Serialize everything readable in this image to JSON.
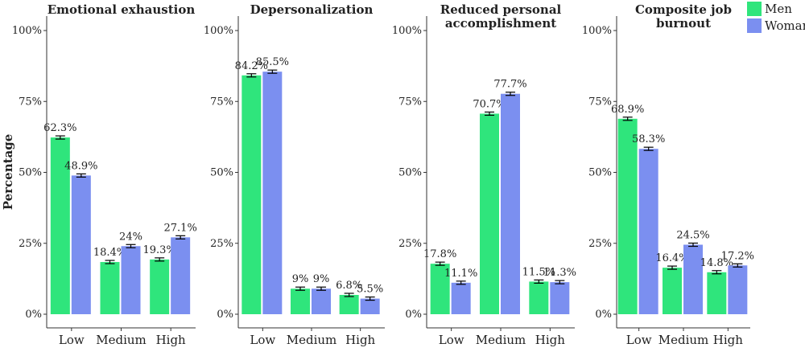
{
  "chart_data": {
    "type": "bar",
    "ylabel": "Percentage",
    "categories": [
      "Low",
      "Medium",
      "High"
    ],
    "ylim": [
      0,
      100
    ],
    "yticks": [
      "0%",
      "25%",
      "50%",
      "75%",
      "100%"
    ],
    "legend": {
      "placement": "top-right",
      "entries": [
        {
          "name": "Men",
          "color": "#2fe57c"
        },
        {
          "name": "Woman",
          "color": "#7b8ff0"
        }
      ]
    },
    "panels": [
      {
        "title": [
          "Emotional exhaustion"
        ],
        "series": [
          {
            "name": "Men",
            "values": [
              62.3,
              18.4,
              19.3
            ],
            "labels": [
              "62.3%",
              "18.4%",
              "19.3%"
            ]
          },
          {
            "name": "Woman",
            "values": [
              48.9,
              24,
              27.1
            ],
            "labels": [
              "48.9%",
              "24%",
              "27.1%"
            ]
          }
        ]
      },
      {
        "title": [
          "Depersonalization"
        ],
        "series": [
          {
            "name": "Men",
            "values": [
              84.2,
              9,
              6.8
            ],
            "labels": [
              "84.2%",
              "9%",
              "6.8%"
            ]
          },
          {
            "name": "Woman",
            "values": [
              85.5,
              9,
              5.5
            ],
            "labels": [
              "85.5%",
              "9%",
              "5.5%"
            ]
          }
        ]
      },
      {
        "title": [
          "Reduced personal",
          "accomplishment"
        ],
        "series": [
          {
            "name": "Men",
            "values": [
              17.8,
              70.7,
              11.5
            ],
            "labels": [
              "17.8%",
              "70.7%",
              "11.5%"
            ]
          },
          {
            "name": "Woman",
            "values": [
              11.1,
              77.7,
              11.3
            ],
            "labels": [
              "11.1%",
              "77.7%",
              "11.3%"
            ]
          }
        ]
      },
      {
        "title": [
          "Composite job",
          "burnout"
        ],
        "series": [
          {
            "name": "Men",
            "values": [
              68.9,
              16.4,
              14.8
            ],
            "labels": [
              "68.9%",
              "16.4%",
              "14.8%"
            ]
          },
          {
            "name": "Woman",
            "values": [
              58.3,
              24.5,
              17.2
            ],
            "labels": [
              "58.3%",
              "24.5%",
              "17.2%"
            ]
          }
        ]
      }
    ]
  }
}
